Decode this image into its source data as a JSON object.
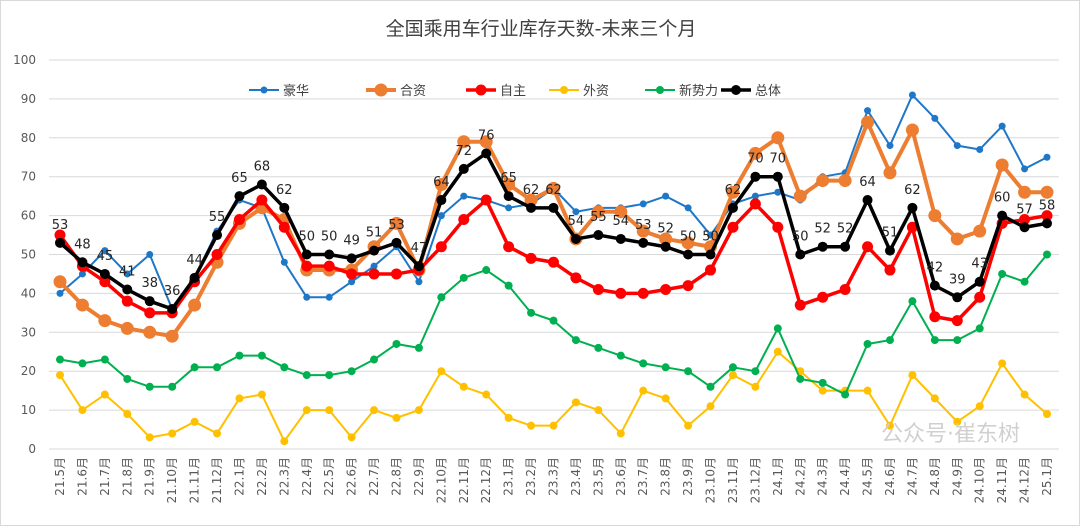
{
  "chart_data": {
    "type": "line",
    "title": "全国乘用车行业库存天数-未来三个月",
    "xlabel": "",
    "ylabel": "",
    "ylim": [
      0,
      100
    ],
    "yticks": [
      0,
      10,
      20,
      30,
      40,
      50,
      60,
      70,
      80,
      90,
      100
    ],
    "grid": true,
    "legend_position": "top",
    "categories": [
      "21.5月",
      "21.6月",
      "21.7月",
      "21.8月",
      "21.9月",
      "21.10月",
      "21.11月",
      "21.12月",
      "22.1月",
      "22.2月",
      "22.3月",
      "22.4月",
      "22.5月",
      "22.6月",
      "22.7月",
      "22.8月",
      "22.9月",
      "22.10月",
      "22.11月",
      "22.12月",
      "23.1月",
      "23.2月",
      "23.3月",
      "23.4月",
      "23.5月",
      "23.6月",
      "23.7月",
      "23.8月",
      "23.9月",
      "23.10月",
      "23.11月",
      "23.12月",
      "24.1月",
      "24.2月",
      "24.3月",
      "24.4月",
      "24.5月",
      "24.6月",
      "24.7月",
      "24.8月",
      "24.9月",
      "24.10月",
      "24.11月",
      "24.12月",
      "25.1月"
    ],
    "series": [
      {
        "name": "豪华",
        "color": "#1F77C8",
        "values": [
          40,
          45,
          51,
          45,
          50,
          36,
          44,
          56,
          64,
          62,
          48,
          39,
          39,
          43,
          47,
          52,
          43,
          60,
          65,
          64,
          62,
          63,
          67,
          61,
          62,
          62,
          63,
          65,
          62,
          55,
          63,
          65,
          66,
          64,
          70,
          71,
          87,
          78,
          91,
          85,
          78,
          77,
          83,
          72,
          75
        ]
      },
      {
        "name": "合资",
        "color": "#ED7D31",
        "values": [
          43,
          37,
          33,
          31,
          30,
          29,
          37,
          48,
          58,
          62,
          59,
          46,
          46,
          46,
          52,
          58,
          46,
          68,
          79,
          79,
          68,
          64,
          67,
          54,
          61,
          61,
          56,
          54,
          53,
          52,
          66,
          76,
          80,
          65,
          69,
          69,
          84,
          71,
          82,
          60,
          54,
          56,
          73,
          66,
          66
        ]
      },
      {
        "name": "自主",
        "color": "#FF0000",
        "values": [
          55,
          47,
          43,
          38,
          35,
          35,
          43,
          50,
          59,
          64,
          57,
          47,
          47,
          45,
          45,
          45,
          46,
          52,
          59,
          64,
          52,
          49,
          48,
          44,
          41,
          40,
          40,
          41,
          42,
          46,
          57,
          63,
          57,
          37,
          39,
          41,
          52,
          46,
          57,
          34,
          33,
          39,
          58,
          59,
          60
        ]
      },
      {
        "name": "外资",
        "color": "#FFC000",
        "values": [
          19,
          10,
          14,
          9,
          3,
          4,
          7,
          4,
          13,
          14,
          2,
          10,
          10,
          3,
          10,
          8,
          10,
          20,
          16,
          14,
          8,
          6,
          6,
          12,
          10,
          4,
          15,
          13,
          6,
          11,
          19,
          16,
          25,
          20,
          15,
          15,
          15,
          6,
          19,
          13,
          7,
          11,
          22,
          14,
          9
        ]
      },
      {
        "name": "新势力",
        "color": "#00B050",
        "values": [
          23,
          22,
          23,
          18,
          16,
          16,
          21,
          21,
          24,
          24,
          21,
          19,
          19,
          20,
          23,
          27,
          26,
          39,
          44,
          46,
          42,
          35,
          33,
          28,
          26,
          24,
          22,
          21,
          20,
          16,
          21,
          20,
          31,
          18,
          17,
          14,
          27,
          28,
          38,
          28,
          28,
          31,
          45,
          43,
          50
        ]
      },
      {
        "name": "总体",
        "color": "#000000",
        "values": [
          53,
          48,
          45,
          41,
          38,
          36,
          44,
          55,
          65,
          68,
          62,
          50,
          50,
          49,
          51,
          53,
          47,
          64,
          72,
          76,
          65,
          62,
          62,
          54,
          55,
          54,
          53,
          52,
          50,
          50,
          62,
          70,
          70,
          50,
          52,
          52,
          64,
          51,
          62,
          42,
          39,
          43,
          60,
          57,
          58
        ],
        "data_labels": true
      }
    ]
  },
  "watermark": "公众号·崔东树"
}
